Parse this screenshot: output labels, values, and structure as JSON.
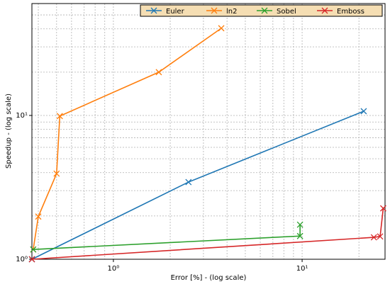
{
  "chart_data": {
    "type": "line",
    "xlabel": "Error [%] - (log scale)",
    "ylabel": "Speedup - (log scale)",
    "xscale": "log",
    "yscale": "log",
    "xlim": [
      0.37,
      27.5
    ],
    "ylim": [
      1,
      60
    ],
    "xticks": [
      {
        "value": 1,
        "label": "10⁰"
      },
      {
        "value": 10,
        "label": "10¹"
      }
    ],
    "yticks": [
      {
        "value": 1,
        "label": "10⁰"
      },
      {
        "value": 10,
        "label": "10¹"
      }
    ],
    "xminorticks": [
      0.4,
      0.5,
      0.6,
      0.7,
      0.8,
      0.9,
      2,
      3,
      4,
      5,
      6,
      7,
      8,
      9,
      20
    ],
    "yminorticks": [
      2,
      3,
      4,
      5,
      6,
      7,
      8,
      9,
      20,
      30,
      40,
      50
    ],
    "grid": true,
    "legend": "upper right",
    "marker": "x",
    "series": [
      {
        "name": "Euler",
        "color": "#1f77b4",
        "x": [
          0.37,
          2.5,
          21.2
        ],
        "values": [
          1,
          3.44,
          10.7
        ]
      },
      {
        "name": "ln2",
        "color": "#ff7f0e",
        "x": [
          0.376,
          0.4,
          0.5,
          0.52,
          1.74,
          3.73
        ],
        "values": [
          1.17,
          1.98,
          3.94,
          9.9,
          20,
          40.4
        ]
      },
      {
        "name": "Sobel",
        "color": "#2ca02c",
        "x": [
          0.376,
          9.75,
          9.75
        ],
        "values": [
          1.17,
          1.45,
          1.74
        ]
      },
      {
        "name": "Emboss",
        "color": "#d62728",
        "x": [
          0.37,
          24,
          25.9,
          26.9
        ],
        "values": [
          1,
          1.42,
          1.44,
          2.26
        ]
      }
    ]
  }
}
